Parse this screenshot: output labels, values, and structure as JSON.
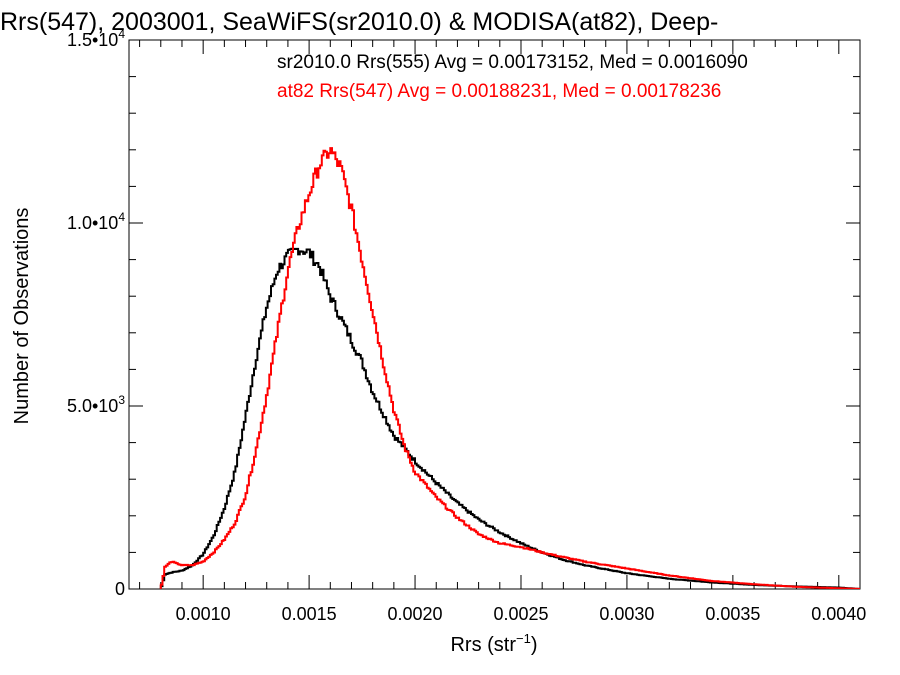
{
  "chart_data": {
    "type": "line",
    "title": "Rrs(547), 2003001, SeaWiFS(sr2010.0) & MODISA(at82), Deep-",
    "xlabel_main": "Rrs (str",
    "xlabel_sup": "−1",
    "xlabel_close": ")",
    "ylabel": "Number of Observations",
    "xlim": [
      0.00065,
      0.0041
    ],
    "ylim": [
      0,
      15000
    ],
    "grid": false,
    "legend_position": "top-right",
    "x_ticks": [
      {
        "value": 0.001,
        "label": "0.0010"
      },
      {
        "value": 0.0015,
        "label": "0.0015"
      },
      {
        "value": 0.002,
        "label": "0.0020"
      },
      {
        "value": 0.0025,
        "label": "0.0025"
      },
      {
        "value": 0.003,
        "label": "0.0030"
      },
      {
        "value": 0.0035,
        "label": "0.0035"
      },
      {
        "value": 0.004,
        "label": "0.0040"
      }
    ],
    "y_ticks": [
      {
        "value": 0,
        "mantissa": "0",
        "exp": ""
      },
      {
        "value": 5000,
        "mantissa": "5.0•10",
        "exp": "3"
      },
      {
        "value": 10000,
        "mantissa": "1.0•10",
        "exp": "4"
      },
      {
        "value": 15000,
        "mantissa": "1.5•10",
        "exp": "4"
      }
    ],
    "series": [
      {
        "name": "sr2010.0 Rrs(555) Avg = 0.00173152, Med = 0.0016090",
        "color": "#000000",
        "x": [
          0.0008,
          0.00082,
          0.00085,
          0.0009,
          0.00095,
          0.001,
          0.00105,
          0.0011,
          0.00115,
          0.0012,
          0.00125,
          0.0013,
          0.00135,
          0.0014,
          0.00145,
          0.0015,
          0.00155,
          0.0016,
          0.00165,
          0.0017,
          0.00175,
          0.0018,
          0.00185,
          0.0019,
          0.002,
          0.0021,
          0.0022,
          0.0023,
          0.0024,
          0.0025,
          0.0026,
          0.0027,
          0.0028,
          0.003,
          0.0032,
          0.0034,
          0.0036,
          0.0038,
          0.004,
          0.0041
        ],
        "y": [
          0,
          400,
          450,
          500,
          650,
          950,
          1450,
          2200,
          3200,
          4700,
          6300,
          7700,
          8700,
          9100,
          9300,
          9200,
          8800,
          8000,
          7400,
          6800,
          6200,
          5400,
          4800,
          4200,
          3500,
          2900,
          2350,
          1900,
          1550,
          1250,
          1000,
          800,
          650,
          430,
          280,
          180,
          110,
          70,
          40,
          0
        ]
      },
      {
        "name": "at82 Rrs(547) Avg = 0.00188231, Med = 0.00178236",
        "color": "#ff0000",
        "x": [
          0.0008,
          0.00082,
          0.00085,
          0.0009,
          0.00095,
          0.001,
          0.00105,
          0.0011,
          0.00115,
          0.0012,
          0.00125,
          0.0013,
          0.00135,
          0.0014,
          0.00145,
          0.0015,
          0.00155,
          0.0016,
          0.00165,
          0.0017,
          0.00175,
          0.0018,
          0.00185,
          0.0019,
          0.00195,
          0.002,
          0.0021,
          0.0022,
          0.0023,
          0.0024,
          0.0025,
          0.0026,
          0.0027,
          0.0028,
          0.003,
          0.0032,
          0.0034,
          0.0036,
          0.0038,
          0.004,
          0.0041
        ],
        "y": [
          0,
          600,
          750,
          650,
          650,
          750,
          1000,
          1350,
          1800,
          2550,
          3800,
          5300,
          7000,
          8700,
          9900,
          10800,
          11600,
          12000,
          11500,
          10400,
          9000,
          7600,
          6200,
          4900,
          3900,
          3200,
          2500,
          1950,
          1500,
          1250,
          1150,
          1000,
          870,
          750,
          560,
          370,
          220,
          130,
          60,
          20,
          0
        ]
      }
    ]
  }
}
